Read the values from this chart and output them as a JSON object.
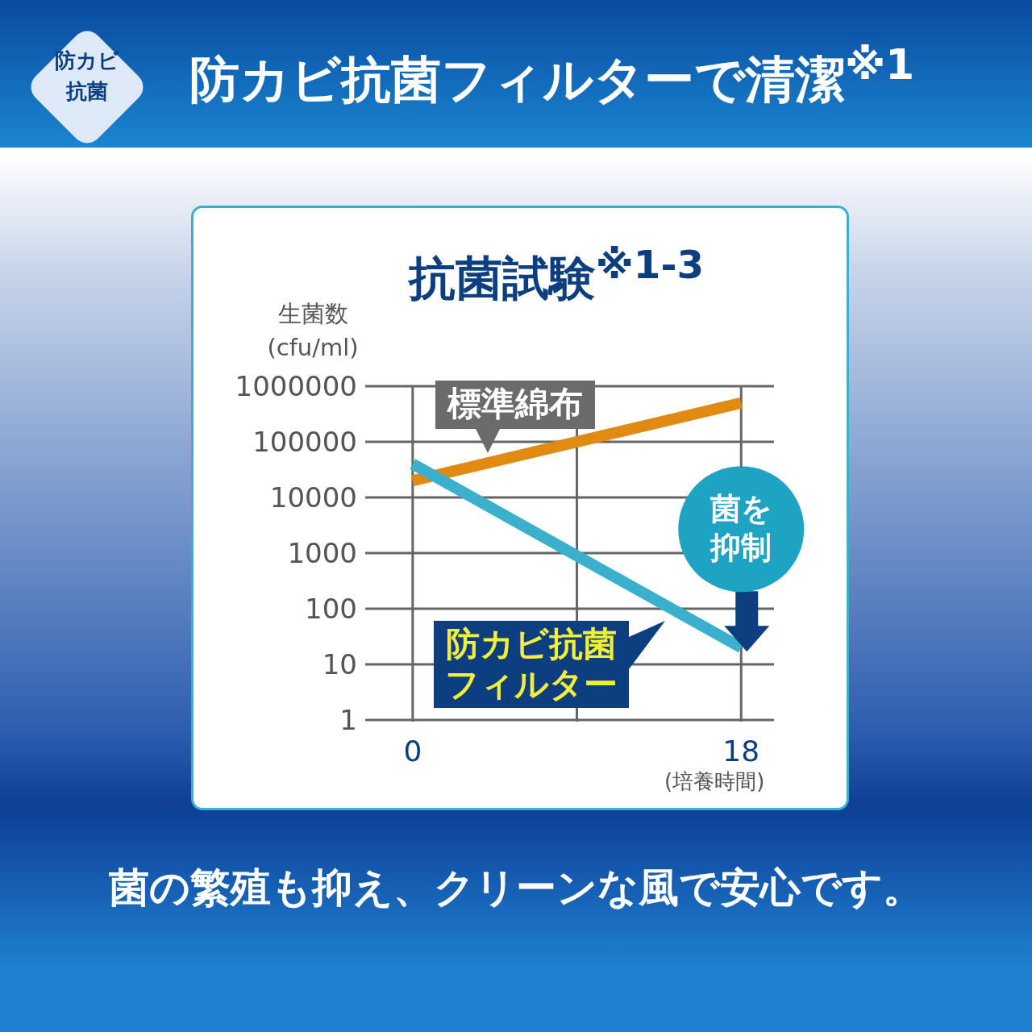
{
  "chart_data": {
    "type": "line",
    "title": "防カビ抗菌フィルターで清潔$^{※1}$",
    "subtitle": "抗菌試験$^{※1-3}$",
    "ylabel": "生菌数 (cfu/ml)",
    "xlabel": "(培養時間)",
    "x": [
      0,
      18
    ],
    "series": [
      {
        "name": "標準綿布",
        "color": "#e08a12",
        "values": [
          20000,
          500000
        ]
      },
      {
        "name": "防カビ抗菌フィルター",
        "color": "#3ab0cc",
        "values": [
          40000,
          20
        ]
      }
    ],
    "xlim": [
      -2.6,
      19.8
    ],
    "ylim": [
      1,
      1000000
    ],
    "xticks": [
      0,
      {
        "value": 9,
        "label": null
      },
      18
    ],
    "yticks": [
      1,
      10,
      100,
      1000,
      10000,
      100000,
      1000000
    ],
    "log": "y",
    "grid": true,
    "legend": false,
    "marker": "none",
    "line_style": "solid",
    "annotations": [
      "防カビ抗菌",
      {
        "text": "菌を抑制",
        "x": 18,
        "y": 20
      },
      "菌の繁殖も抑え、クリーンな風で安心です。"
    ]
  }
}
